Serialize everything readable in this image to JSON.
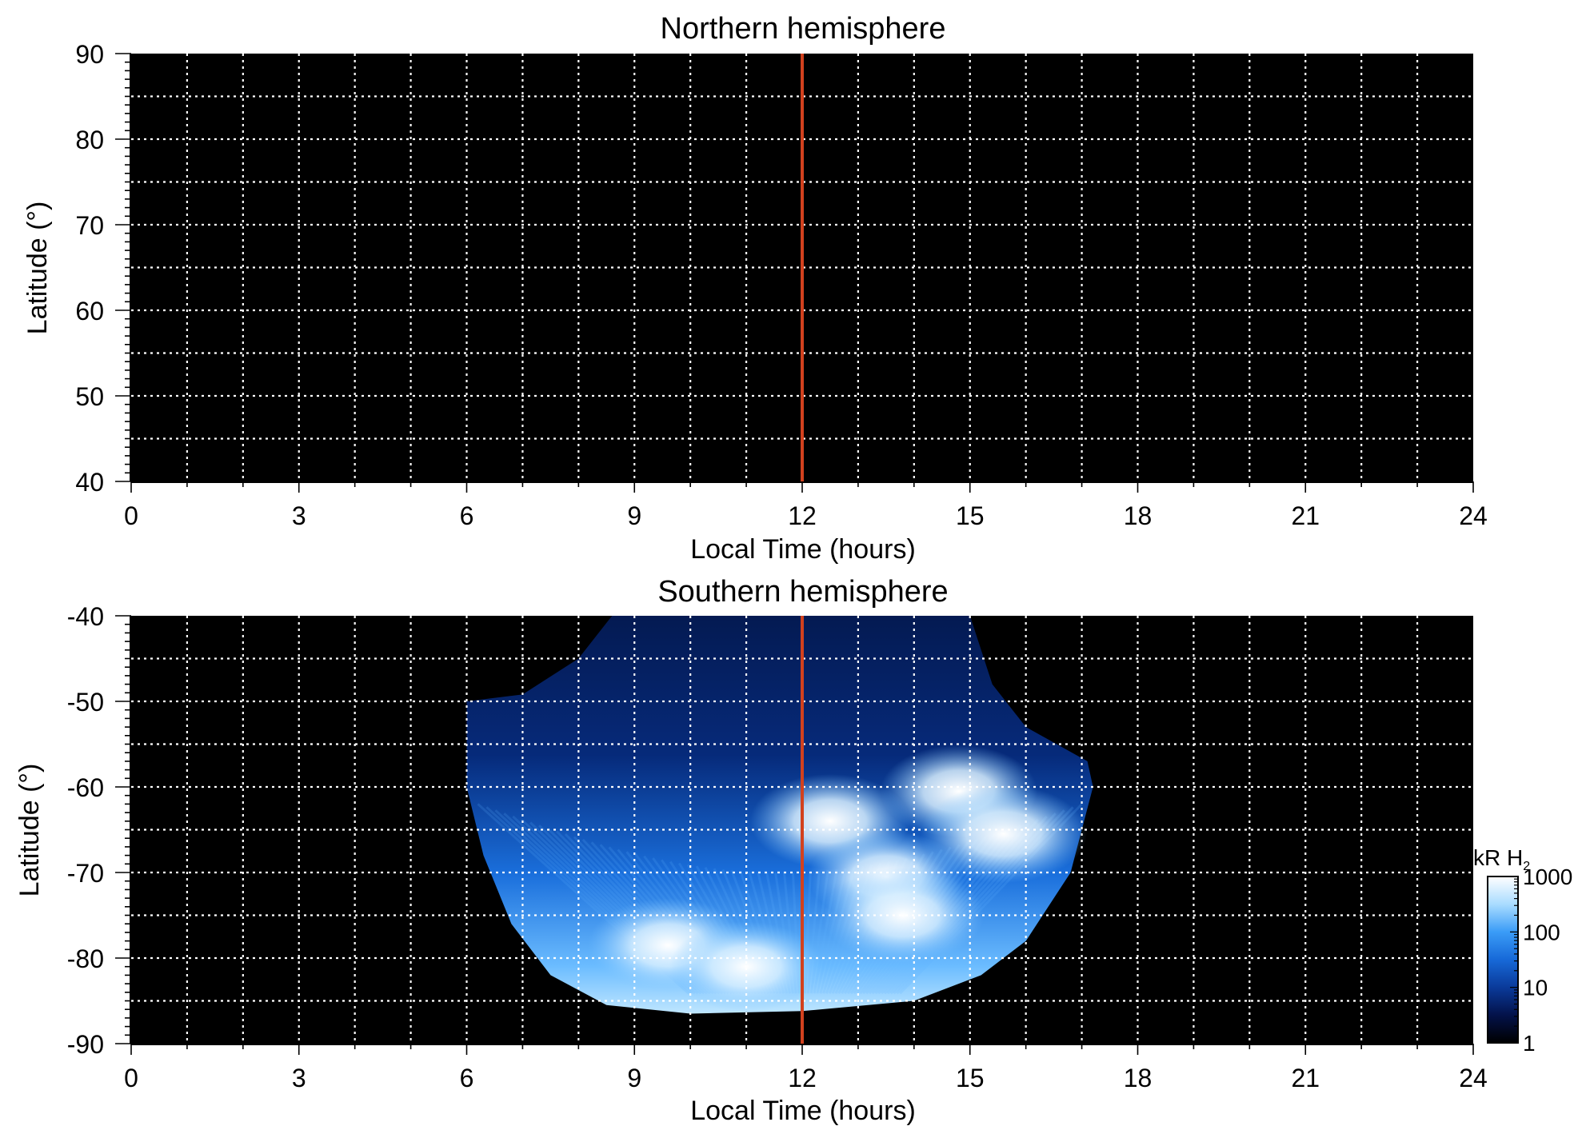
{
  "colors": {
    "background": "#000000",
    "grid": "#ffffff",
    "noon_line": "#d2411e",
    "colormap": [
      "#000000",
      "#03124a",
      "#0a3a9a",
      "#1769d8",
      "#3a9cf7",
      "#a9dcff",
      "#ffffff"
    ]
  },
  "chart_data": [
    {
      "type": "heatmap",
      "title": "Northern hemisphere",
      "xlabel": "Local Time (hours)",
      "ylabel": "Latitude (°)",
      "xlim": [
        0,
        24
      ],
      "ylim": [
        40,
        90
      ],
      "xticks": [
        "0",
        "3",
        "6",
        "9",
        "12",
        "15",
        "18",
        "21",
        "24"
      ],
      "yticks": [
        "40",
        "50",
        "60",
        "70",
        "80",
        "90"
      ],
      "grid": true,
      "reference_line_x": 12,
      "emission": "none"
    },
    {
      "type": "heatmap",
      "title": "Southern hemisphere",
      "xlabel": "Local Time (hours)",
      "ylabel": "Latitude (°)",
      "xlim": [
        0,
        24
      ],
      "ylim": [
        -90,
        -40
      ],
      "xticks": [
        "0",
        "3",
        "6",
        "9",
        "12",
        "15",
        "18",
        "21",
        "24"
      ],
      "yticks": [
        "-90",
        "-80",
        "-70",
        "-60",
        "-50",
        "-40"
      ],
      "grid": true,
      "reference_line_x": 12,
      "coverage_lt_range": [
        6,
        17.2
      ],
      "coverage_boundary": [
        [
          6,
          -50
        ],
        [
          7,
          -49.2
        ],
        [
          8,
          -45
        ],
        [
          8.6,
          -40
        ],
        [
          15,
          -40
        ],
        [
          15.4,
          -48
        ],
        [
          16,
          -53
        ],
        [
          17.1,
          -57
        ],
        [
          17.2,
          -60
        ],
        [
          16.8,
          -70
        ],
        [
          16,
          -78
        ],
        [
          15.2,
          -82
        ],
        [
          14,
          -85
        ],
        [
          12,
          -86.2
        ],
        [
          10,
          -86.5
        ],
        [
          8.5,
          -85.5
        ],
        [
          7.5,
          -82
        ],
        [
          6.8,
          -76
        ],
        [
          6.3,
          -68
        ],
        [
          6,
          -60
        ],
        [
          6,
          -50
        ]
      ],
      "bright_regions": [
        {
          "lt": 12.5,
          "lat": -64,
          "level": 600
        },
        {
          "lt": 14.8,
          "lat": -60.5,
          "level": 500
        },
        {
          "lt": 15.6,
          "lat": -65.5,
          "level": 900
        },
        {
          "lt": 13.5,
          "lat": -70.5,
          "level": 500
        },
        {
          "lt": 13.8,
          "lat": -75,
          "level": 700
        },
        {
          "lt": 9.6,
          "lat": -78.5,
          "level": 600
        },
        {
          "lt": 11,
          "lat": -81,
          "level": 400
        }
      ],
      "colorbar": {
        "label_main": "kR H",
        "label_sub": "2",
        "scale": "log",
        "range": [
          1,
          1000
        ],
        "tick_labels": [
          "1",
          "10",
          "100",
          "1000"
        ]
      }
    }
  ]
}
